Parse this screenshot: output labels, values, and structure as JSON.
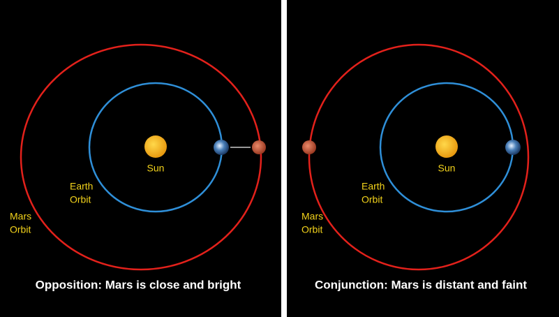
{
  "panels": [
    {
      "caption": "Opposition: Mars is close and bright",
      "sun_label": "Sun",
      "earth_orbit_label": [
        "Earth",
        "Orbit"
      ],
      "mars_orbit_label": [
        "Mars",
        "Orbit"
      ]
    },
    {
      "caption": "Conjunction: Mars is distant and faint",
      "sun_label": "Sun",
      "earth_orbit_label": [
        "Earth",
        "Orbit"
      ],
      "mars_orbit_label": [
        "Mars",
        "Orbit"
      ]
    }
  ]
}
